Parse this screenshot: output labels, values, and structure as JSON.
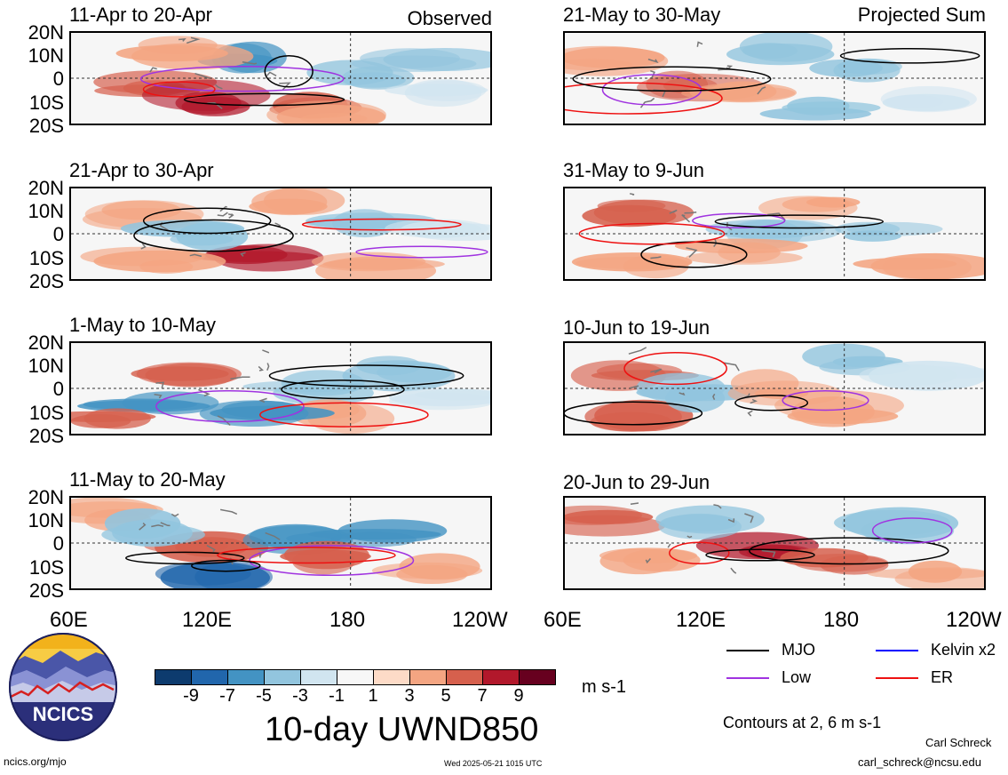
{
  "panels": [
    {
      "title": "11-Apr to 20-Apr",
      "tag": "Observed"
    },
    {
      "title": "21-Apr to 30-Apr",
      "tag": ""
    },
    {
      "title": "1-May to 10-May",
      "tag": ""
    },
    {
      "title": "11-May to 20-May",
      "tag": ""
    },
    {
      "title": "21-May to 30-May",
      "tag": "Projected Sum"
    },
    {
      "title": "31-May to 9-Jun",
      "tag": ""
    },
    {
      "title": "10-Jun to 19-Jun",
      "tag": ""
    },
    {
      "title": "20-Jun to 29-Jun",
      "tag": ""
    }
  ],
  "lat_labels": [
    "20N",
    "10N",
    "0",
    "10S",
    "20S"
  ],
  "lon_labels": [
    "60E",
    "120E",
    "180",
    "120W"
  ],
  "colorbar": {
    "colors": [
      "#0d3b6e",
      "#2166ac",
      "#4393c3",
      "#92c5de",
      "#d1e5f0",
      "#f7f7f7",
      "#fddbc7",
      "#f4a582",
      "#d6604d",
      "#b2182b",
      "#67001f"
    ],
    "labels": [
      "-9",
      "-7",
      "-5",
      "-3",
      "-1",
      "1",
      "3",
      "5",
      "7",
      "9"
    ],
    "units": "m s-1"
  },
  "main_title": "10-day UWND850",
  "legend": [
    {
      "label": "MJO",
      "color": "#000000"
    },
    {
      "label": "Kelvin x2",
      "color": "#0000ff"
    },
    {
      "label": "Low",
      "color": "#a033e0"
    },
    {
      "label": "ER",
      "color": "#ee1111"
    }
  ],
  "contours_note": "Contours at 2, 6 m s-1",
  "logo_text": "NCICS",
  "footer": {
    "left": "ncics.org/mjo",
    "center": "Wed 2025-05-21 1015 UTC",
    "author": "Carl Schreck",
    "email": "carl_schreck@ncsu.edu"
  }
}
